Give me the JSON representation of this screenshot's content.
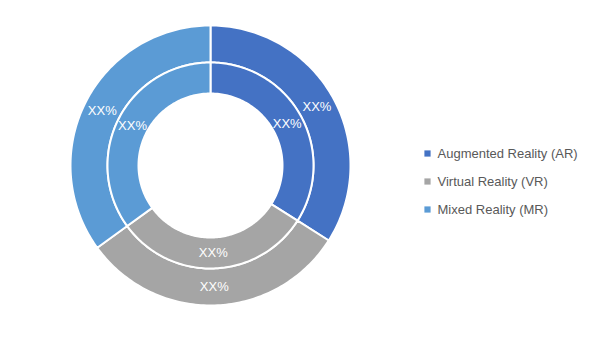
{
  "chart_data": {
    "type": "donut",
    "categories": [
      "Augmented Reality (AR)",
      "Virtual Reality (VR)",
      "Mixed Reality (MR)"
    ],
    "colors": [
      "#4472c4",
      "#a5a5a5",
      "#5b9bd5"
    ],
    "series": [
      {
        "values": [
          34,
          31,
          35
        ],
        "value_labels": [
          "XX%",
          "XX%",
          "XX%"
        ]
      },
      {
        "values": [
          34,
          31,
          35
        ],
        "value_labels": [
          "XX%",
          "XX%",
          "XX%"
        ]
      }
    ],
    "data_labels": true,
    "legend": "right"
  }
}
